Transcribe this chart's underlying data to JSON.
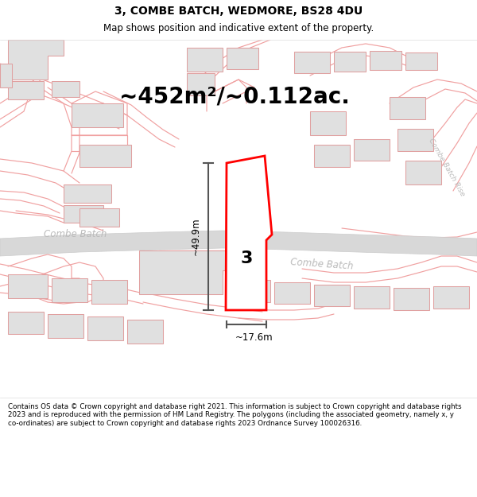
{
  "title": "3, COMBE BATCH, WEDMORE, BS28 4DU",
  "subtitle": "Map shows position and indicative extent of the property.",
  "area_text": "~452m²/~0.112ac.",
  "dim_vertical": "~49.9m",
  "dim_horizontal": "~17.6m",
  "label_number": "3",
  "footer_text": "Contains OS data © Crown copyright and database right 2021. This information is subject to Crown copyright and database rights 2023 and is reproduced with the permission of HM Land Registry. The polygons (including the associated geometry, namely x, y co-ordinates) are subject to Crown copyright and database rights 2023 Ordnance Survey 100026316.",
  "bg_color": "#ffffff",
  "road_color_pink": "#f0a0a0",
  "building_fill": "#e0e0e0",
  "building_edge": "#e0a0a0",
  "plot_fill": "#ffffff",
  "plot_edge": "#ff0000",
  "dim_line_color": "#555555",
  "street_label_color": "#bbbbbb",
  "road_gray_fill": "#d8d8d8",
  "road_gray_edge": "#cccccc",
  "title_fontsize": 10,
  "subtitle_fontsize": 8.5,
  "area_fontsize": 20,
  "label_fontsize": 16,
  "dim_fontsize": 8.5,
  "footer_fontsize": 6.3,
  "street_fontsize": 8.5
}
